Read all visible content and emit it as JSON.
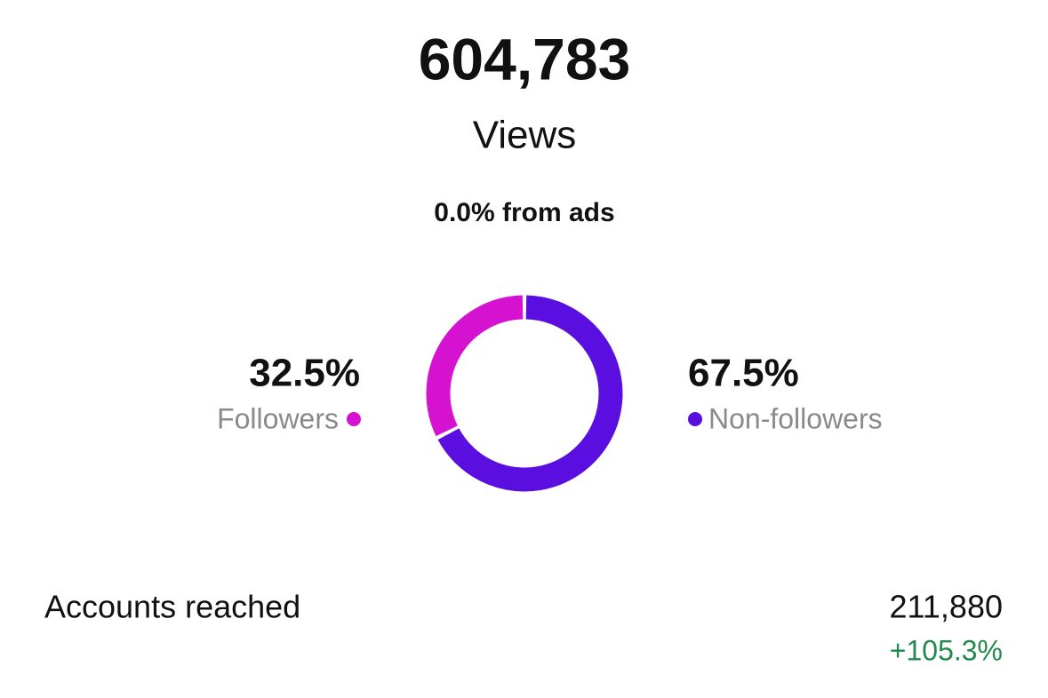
{
  "summary": {
    "views_value": "604,783",
    "views_label": "Views",
    "ads_note": "0.0% from ads"
  },
  "chart_data": {
    "type": "donut",
    "categories": [
      "Followers",
      "Non-followers"
    ],
    "values": [
      32.5,
      67.5
    ],
    "value_labels": [
      "32.5%",
      "67.5%"
    ],
    "colors": [
      "#d412d0",
      "#5a0fe0"
    ]
  },
  "metric": {
    "label": "Accounts reached",
    "value": "211,880",
    "change": "+105.3%"
  }
}
